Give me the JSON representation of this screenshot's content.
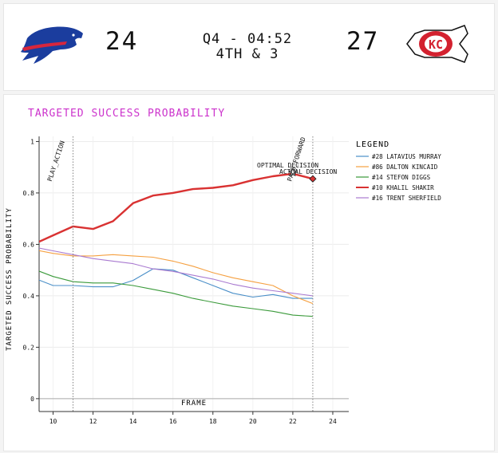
{
  "scoreboard": {
    "home_score": "24",
    "away_score": "27",
    "clock": "Q4 - 04:52",
    "down_distance": "4TH & 3",
    "home_logo_icon": "buffalo-bills-logo",
    "away_logo_icon": "kansas-city-chiefs-logo"
  },
  "colors": {
    "title": "#cc33cc",
    "murray": "#4a8fc8",
    "kincaid": "#f5a040",
    "diggs": "#3a9a3a",
    "shakir": "#d93232",
    "sherfield": "#a97ad0"
  },
  "chart_data": {
    "type": "line",
    "title": "TARGETED SUCCESS PROBABILITY",
    "xlabel": "FRAME",
    "ylabel": "TARGETED SUCCESS PROBABILITY",
    "xlim": [
      9.3,
      24.8
    ],
    "ylim": [
      -0.05,
      1.02
    ],
    "xticks": [
      "10",
      "12",
      "14",
      "16",
      "18",
      "20",
      "22",
      "24"
    ],
    "yticks": [
      "0",
      "0.2",
      "0.4",
      "0.6",
      "0.8",
      "1"
    ],
    "grid": true,
    "legend_title": "LEGEND",
    "legend_position": "right",
    "x": [
      9,
      10,
      11,
      12,
      13,
      14,
      15,
      16,
      17,
      18,
      19,
      20,
      21,
      22,
      23
    ],
    "series": [
      {
        "name": "#28 LATAVIUS MURRAY",
        "color": "#4a8fc8",
        "values": [
          0.47,
          0.44,
          0.44,
          0.435,
          0.435,
          0.46,
          0.505,
          0.5,
          0.47,
          0.44,
          0.41,
          0.395,
          0.405,
          0.39,
          0.39
        ]
      },
      {
        "name": "#86 DALTON KINCAID",
        "color": "#f5a040",
        "values": [
          0.58,
          0.565,
          0.555,
          0.555,
          0.56,
          0.555,
          0.55,
          0.535,
          0.515,
          0.49,
          0.47,
          0.455,
          0.44,
          0.4,
          0.37
        ]
      },
      {
        "name": "#14 STEFON DIGGS",
        "color": "#3a9a3a",
        "values": [
          0.505,
          0.475,
          0.455,
          0.45,
          0.45,
          0.44,
          0.425,
          0.41,
          0.39,
          0.375,
          0.36,
          0.35,
          0.34,
          0.325,
          0.32
        ]
      },
      {
        "name": "#10 KHALIL SHAKIR",
        "color": "#d93232",
        "values": [
          0.6,
          0.635,
          0.67,
          0.66,
          0.69,
          0.76,
          0.79,
          0.8,
          0.815,
          0.82,
          0.83,
          0.85,
          0.865,
          0.875,
          0.855
        ]
      },
      {
        "name": "#16 TRENT SHERFIELD",
        "color": "#a97ad0",
        "values": [
          0.59,
          0.575,
          0.56,
          0.545,
          0.535,
          0.525,
          0.505,
          0.495,
          0.48,
          0.465,
          0.445,
          0.43,
          0.42,
          0.41,
          0.4
        ]
      }
    ],
    "annotations": [
      {
        "label": "PLAY_ACTION",
        "x": 11,
        "type": "vline"
      },
      {
        "label": "PASS_FORWARD",
        "x": 23,
        "type": "vline"
      },
      {
        "label": "OPTIMAL DECISION",
        "x": 22,
        "y": 0.88,
        "type": "star"
      },
      {
        "label": "ACTUAL DECISION",
        "x": 23,
        "y": 0.855,
        "type": "diamond"
      }
    ]
  }
}
